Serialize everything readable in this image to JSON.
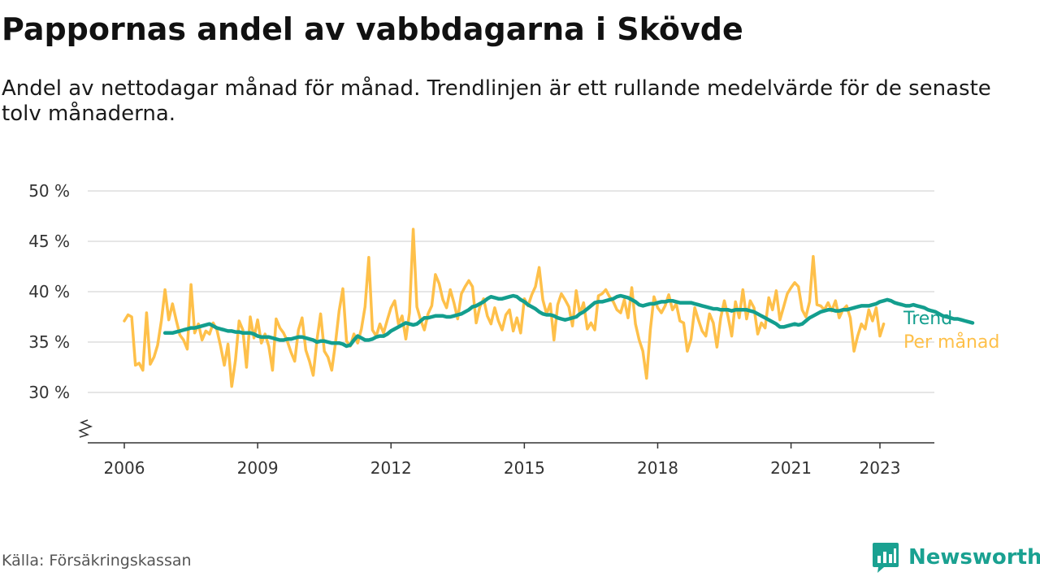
{
  "title": "Pappornas andel av vabbdagarna i Skövde",
  "subtitle": "Andel av nettodagar månad för månad. Trendlinjen är ett rullande medelvärde för de senaste tolv månaderna.",
  "source": "Källa: Försäkringskassan",
  "brand": "Newsworthy",
  "colors": {
    "trend": "#139e8e",
    "monthly": "#fec04a",
    "grid": "#dddddd",
    "axis": "#333333",
    "brand": "#1aa191"
  },
  "chart_data": {
    "type": "line",
    "ylim": [
      25,
      50
    ],
    "y_ticks": [
      {
        "value": 30,
        "label": "30 %"
      },
      {
        "value": 35,
        "label": "35 %"
      },
      {
        "value": 40,
        "label": "40 %"
      },
      {
        "value": 45,
        "label": "45 %"
      },
      {
        "value": 50,
        "label": "50 %"
      }
    ],
    "x_ticks": [
      {
        "value": 2006,
        "label": "2006"
      },
      {
        "value": 2009,
        "label": "2009"
      },
      {
        "value": 2012,
        "label": "2012"
      },
      {
        "value": 2015,
        "label": "2015"
      },
      {
        "value": 2018,
        "label": "2018"
      },
      {
        "value": 2021,
        "label": "2021"
      },
      {
        "value": 2023,
        "label": "2023"
      }
    ],
    "grid": true,
    "y_axis_break": true,
    "legend": "end-of-line labels",
    "series": [
      {
        "name": "Per månad",
        "start": "2006-01",
        "values": [
          37.1,
          37.7,
          37.5,
          32.7,
          32.9,
          32.2,
          37.9,
          32.8,
          33.5,
          34.7,
          37.1,
          40.2,
          37.2,
          38.8,
          37.2,
          35.7,
          35.2,
          34.3,
          40.7,
          35.9,
          36.8,
          35.2,
          36.1,
          35.8,
          36.9,
          36.2,
          34.6,
          32.7,
          34.8,
          30.6,
          33.2,
          37.1,
          36.2,
          32.5,
          37.5,
          35.4,
          37.2,
          34.9,
          35.8,
          34.6,
          32.2,
          37.3,
          36.4,
          35.9,
          35.1,
          34.0,
          33.1,
          36.2,
          37.4,
          34.2,
          33.1,
          31.7,
          35.2,
          37.8,
          34.1,
          33.5,
          32.2,
          34.9,
          38.1,
          40.3,
          35.1,
          34.6,
          35.8,
          34.9,
          36.3,
          38.5,
          43.4,
          36.2,
          35.6,
          36.8,
          35.9,
          37.2,
          38.4,
          39.1,
          36.8,
          37.6,
          35.3,
          37.9,
          46.2,
          38.5,
          37.2,
          36.2,
          37.8,
          38.6,
          41.7,
          40.8,
          39.2,
          38.4,
          40.2,
          38.9,
          37.3,
          39.8,
          40.5,
          41.1,
          40.5,
          36.9,
          38.5,
          39.3,
          37.6,
          36.8,
          38.4,
          37.1,
          36.2,
          37.7,
          38.2,
          36.1,
          37.4,
          35.9,
          39.3,
          38.6,
          39.7,
          40.5,
          42.4,
          39.2,
          37.8,
          38.8,
          35.2,
          38.7,
          39.8,
          39.2,
          38.5,
          36.6,
          40.1,
          37.8,
          38.9,
          36.3,
          36.9,
          36.2,
          39.6,
          39.8,
          40.2,
          39.5,
          39.0,
          38.2,
          37.9,
          39.2,
          37.4,
          40.4,
          36.8,
          35.2,
          34.1,
          31.4,
          36.2,
          39.5,
          38.4,
          37.9,
          38.6,
          39.7,
          38.2,
          38.8,
          37.1,
          36.9,
          34.1,
          35.3,
          38.4,
          37.2,
          36.1,
          35.6,
          37.8,
          36.9,
          34.5,
          37.4,
          39.1,
          37.5,
          35.6,
          39.0,
          37.4,
          40.2,
          37.3,
          39.1,
          38.4,
          35.8,
          36.9,
          36.4,
          39.4,
          38.2,
          40.1,
          37.2,
          38.5,
          39.8,
          40.4,
          40.9,
          40.5,
          38.2,
          37.5,
          39.0,
          43.5,
          38.7,
          38.6,
          38.2,
          38.9,
          38.1,
          39.1,
          37.4,
          38.2,
          38.6,
          37.4,
          34.1,
          35.6,
          36.8,
          36.3,
          38.2,
          37.1,
          38.4,
          35.6,
          36.8
        ]
      },
      {
        "name": "Trend",
        "start": "2006-12",
        "values": [
          35.9,
          35.9,
          35.9,
          36.0,
          36.1,
          36.2,
          36.3,
          36.4,
          36.4,
          36.5,
          36.6,
          36.7,
          36.8,
          36.6,
          36.4,
          36.3,
          36.2,
          36.1,
          36.1,
          36.0,
          36.0,
          35.9,
          35.9,
          35.9,
          35.8,
          35.6,
          35.5,
          35.5,
          35.5,
          35.4,
          35.3,
          35.2,
          35.2,
          35.3,
          35.3,
          35.4,
          35.5,
          35.5,
          35.4,
          35.3,
          35.2,
          35.0,
          35.1,
          35.1,
          35.0,
          34.9,
          34.9,
          34.9,
          34.8,
          34.6,
          34.7,
          35.2,
          35.6,
          35.4,
          35.2,
          35.2,
          35.3,
          35.5,
          35.6,
          35.6,
          35.8,
          36.1,
          36.3,
          36.5,
          36.7,
          36.9,
          36.8,
          36.7,
          36.8,
          37.1,
          37.4,
          37.4,
          37.5,
          37.6,
          37.6,
          37.6,
          37.5,
          37.5,
          37.6,
          37.7,
          37.8,
          38.0,
          38.2,
          38.5,
          38.6,
          38.8,
          39.0,
          39.3,
          39.5,
          39.4,
          39.3,
          39.3,
          39.4,
          39.5,
          39.6,
          39.5,
          39.2,
          39.0,
          38.7,
          38.5,
          38.3,
          38.0,
          37.8,
          37.7,
          37.7,
          37.6,
          37.4,
          37.3,
          37.2,
          37.3,
          37.4,
          37.5,
          37.8,
          38.0,
          38.3,
          38.6,
          38.9,
          39.0,
          39.0,
          39.1,
          39.2,
          39.3,
          39.5,
          39.6,
          39.5,
          39.4,
          39.2,
          39.0,
          38.7,
          38.6,
          38.7,
          38.8,
          38.8,
          38.9,
          39.0,
          39.0,
          39.1,
          39.1,
          39.0,
          38.9,
          38.9,
          38.9,
          38.9,
          38.8,
          38.7,
          38.6,
          38.5,
          38.4,
          38.3,
          38.3,
          38.2,
          38.2,
          38.2,
          38.1,
          38.2,
          38.2,
          38.2,
          38.2,
          38.1,
          38.0,
          37.8,
          37.6,
          37.4,
          37.2,
          37.0,
          36.8,
          36.5,
          36.5,
          36.6,
          36.7,
          36.8,
          36.7,
          36.8,
          37.1,
          37.4,
          37.6,
          37.8,
          38.0,
          38.1,
          38.2,
          38.2,
          38.1,
          38.1,
          38.2,
          38.2,
          38.3,
          38.4,
          38.5,
          38.6,
          38.6,
          38.6,
          38.7,
          38.8,
          39.0,
          39.1,
          39.2,
          39.1,
          38.9,
          38.8,
          38.7,
          38.6,
          38.6,
          38.7,
          38.6,
          38.5,
          38.4,
          38.2,
          38.1,
          38.0,
          37.8,
          37.6,
          37.5,
          37.4,
          37.3,
          37.3,
          37.2,
          37.1,
          37.0,
          36.9
        ]
      }
    ]
  }
}
